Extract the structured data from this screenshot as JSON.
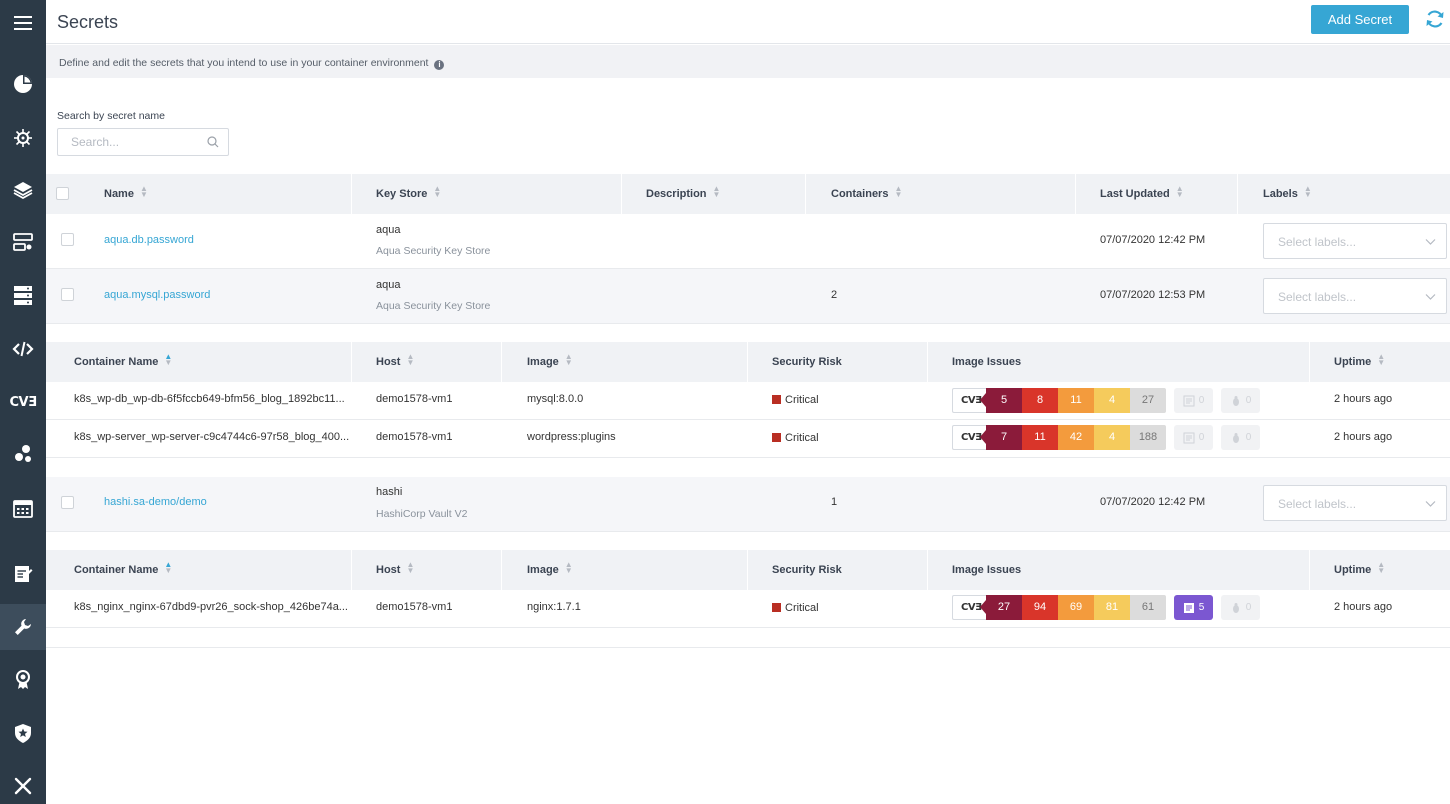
{
  "header": {
    "title": "Secrets",
    "add_button": "Add Secret"
  },
  "description": "Define and edit the secrets that you intend to use in your container environment",
  "search": {
    "label": "Search by secret name",
    "placeholder": "Search..."
  },
  "sidebar": {
    "items": [
      {
        "icon": "menu-icon"
      },
      {
        "icon": "dashboard-icon"
      },
      {
        "icon": "kubernetes-icon"
      },
      {
        "icon": "layers-icon"
      },
      {
        "icon": "workloads-icon"
      },
      {
        "icon": "infrastructure-icon"
      },
      {
        "icon": "code-icon"
      },
      {
        "icon": "cve-icon",
        "text": "CVƎ"
      },
      {
        "icon": "services-icon"
      },
      {
        "icon": "calendar-icon"
      },
      {
        "icon": "audit-icon"
      },
      {
        "icon": "wrench-icon",
        "active": true
      },
      {
        "icon": "certificate-icon"
      },
      {
        "icon": "shield-icon"
      },
      {
        "icon": "tools-icon"
      }
    ]
  },
  "secrets_table": {
    "columns": [
      "Name",
      "Key Store",
      "Description",
      "Containers",
      "Last Updated",
      "Labels"
    ],
    "rows": [
      {
        "name": "aqua.db.password",
        "keystore": "aqua",
        "keystore_sub": "Aqua Security Key Store",
        "description": "",
        "containers": "",
        "updated": "07/07/2020 12:42 PM",
        "labels_placeholder": "Select labels..."
      },
      {
        "name": "aqua.mysql.password",
        "keystore": "aqua",
        "keystore_sub": "Aqua Security Key Store",
        "description": "",
        "containers": "2",
        "updated": "07/07/2020 12:53 PM",
        "labels_placeholder": "Select labels..."
      },
      {
        "name": "hashi.sa-demo/demo",
        "keystore": "hashi",
        "keystore_sub": "HashiCorp Vault V2",
        "description": "",
        "containers": "1",
        "updated": "07/07/2020 12:42 PM",
        "labels_placeholder": "Select labels..."
      }
    ]
  },
  "container_table": {
    "columns": [
      "Container Name",
      "Host",
      "Image",
      "Security Risk",
      "Image Issues",
      "Uptime"
    ],
    "cve_label": "CVƎ",
    "groups": [
      {
        "rows": [
          {
            "name": "k8s_wp-db_wp-db-6f5fccb649-bfm56_blog_1892bc11...",
            "host": "demo1578-vm1",
            "image": "mysql:8.0.0",
            "risk": "Critical",
            "critical": "5",
            "high": "8",
            "medium": "11",
            "low": "4",
            "negligible": "27",
            "malware": "0",
            "sensitive": "0",
            "uptime": "2 hours ago"
          },
          {
            "name": "k8s_wp-server_wp-server-c9c4744c6-97r58_blog_400...",
            "host": "demo1578-vm1",
            "image": "wordpress:plugins",
            "risk": "Critical",
            "critical": "7",
            "high": "11",
            "medium": "42",
            "low": "4",
            "negligible": "188",
            "malware": "0",
            "sensitive": "0",
            "uptime": "2 hours ago"
          }
        ]
      },
      {
        "rows": [
          {
            "name": "k8s_nginx_nginx-67dbd9-pvr26_sock-shop_426be74a...",
            "host": "demo1578-vm1",
            "image": "nginx:1.7.1",
            "risk": "Critical",
            "critical": "27",
            "high": "94",
            "medium": "69",
            "low": "81",
            "negligible": "61",
            "malware": "5",
            "sensitive": "0",
            "uptime": "2 hours ago"
          }
        ]
      }
    ]
  },
  "colors": {
    "accent": "#36a6d4",
    "sidebar": "#2c3a47",
    "critical": "#8b1b3a",
    "high": "#d9352a",
    "medium": "#f39b3d",
    "low": "#f5cb5c",
    "negligible": "#dcdcdc",
    "risk": "#b92e23"
  }
}
